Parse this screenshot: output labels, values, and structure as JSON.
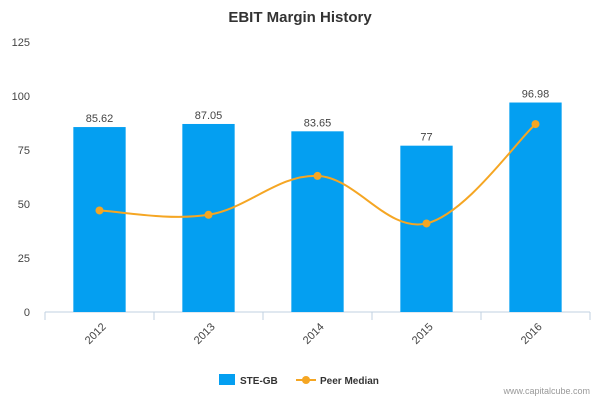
{
  "chart_data": {
    "type": "bar",
    "title": "EBIT Margin History",
    "xlabel": "",
    "ylabel": "",
    "ylim": [
      0,
      125
    ],
    "yticks": [
      0,
      25,
      50,
      75,
      100,
      125
    ],
    "categories": [
      "2012",
      "2013",
      "2014",
      "2015",
      "2016"
    ],
    "series": [
      {
        "name": "STE-GB",
        "type": "bar",
        "color": "#049ff1",
        "values": [
          85.62,
          87.05,
          83.65,
          77,
          96.98
        ],
        "labels": [
          "85.62",
          "87.05",
          "83.65",
          "77",
          "96.98"
        ]
      },
      {
        "name": "Peer Median",
        "type": "line",
        "color": "#f5a623",
        "values": [
          47,
          45,
          63,
          41,
          87
        ]
      }
    ],
    "legend": "bottom-center",
    "grid": false
  },
  "credit": "www.capitalcube.com"
}
